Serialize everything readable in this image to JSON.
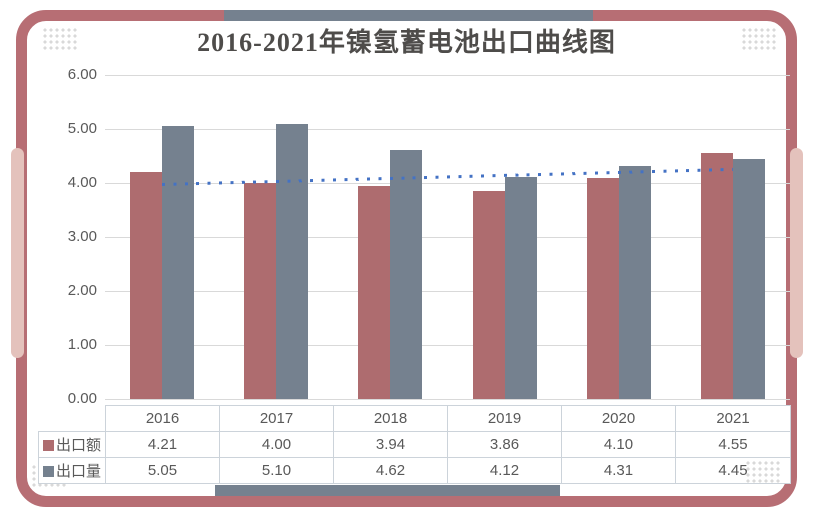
{
  "title": "2016-2021年镍氢蓄电池出口曲线图",
  "chart_data": {
    "type": "bar",
    "title": "2016-2021年镍氢蓄电池出口曲线图",
    "categories": [
      "2016",
      "2017",
      "2018",
      "2019",
      "2020",
      "2021"
    ],
    "series": [
      {
        "name": "出口额",
        "key": "export-value",
        "color": "#ae6c6f",
        "values": [
          4.21,
          4.0,
          3.94,
          3.86,
          4.1,
          4.55
        ]
      },
      {
        "name": "出口量",
        "key": "export-volume",
        "color": "#75818f",
        "values": [
          5.05,
          5.1,
          4.62,
          4.12,
          4.31,
          4.45
        ]
      }
    ],
    "y_ticks": [
      "6.00",
      "5.00",
      "4.00",
      "3.00",
      "2.00",
      "1.00",
      "0.00"
    ],
    "ylim": [
      0,
      6
    ],
    "grid": true,
    "legend_position": "table-left",
    "data_table_shown": true,
    "trendline": {
      "series": "出口额",
      "style": "dotted",
      "color": "#4472c4",
      "start": 3.97,
      "end": 4.25
    }
  },
  "colors": {
    "card_border": "#b76e74",
    "border_accent": "#75818f",
    "side_pill": "#e4c2bc",
    "gridline": "#d9d9d9",
    "text": "#595959",
    "trend": "#4472c4"
  }
}
